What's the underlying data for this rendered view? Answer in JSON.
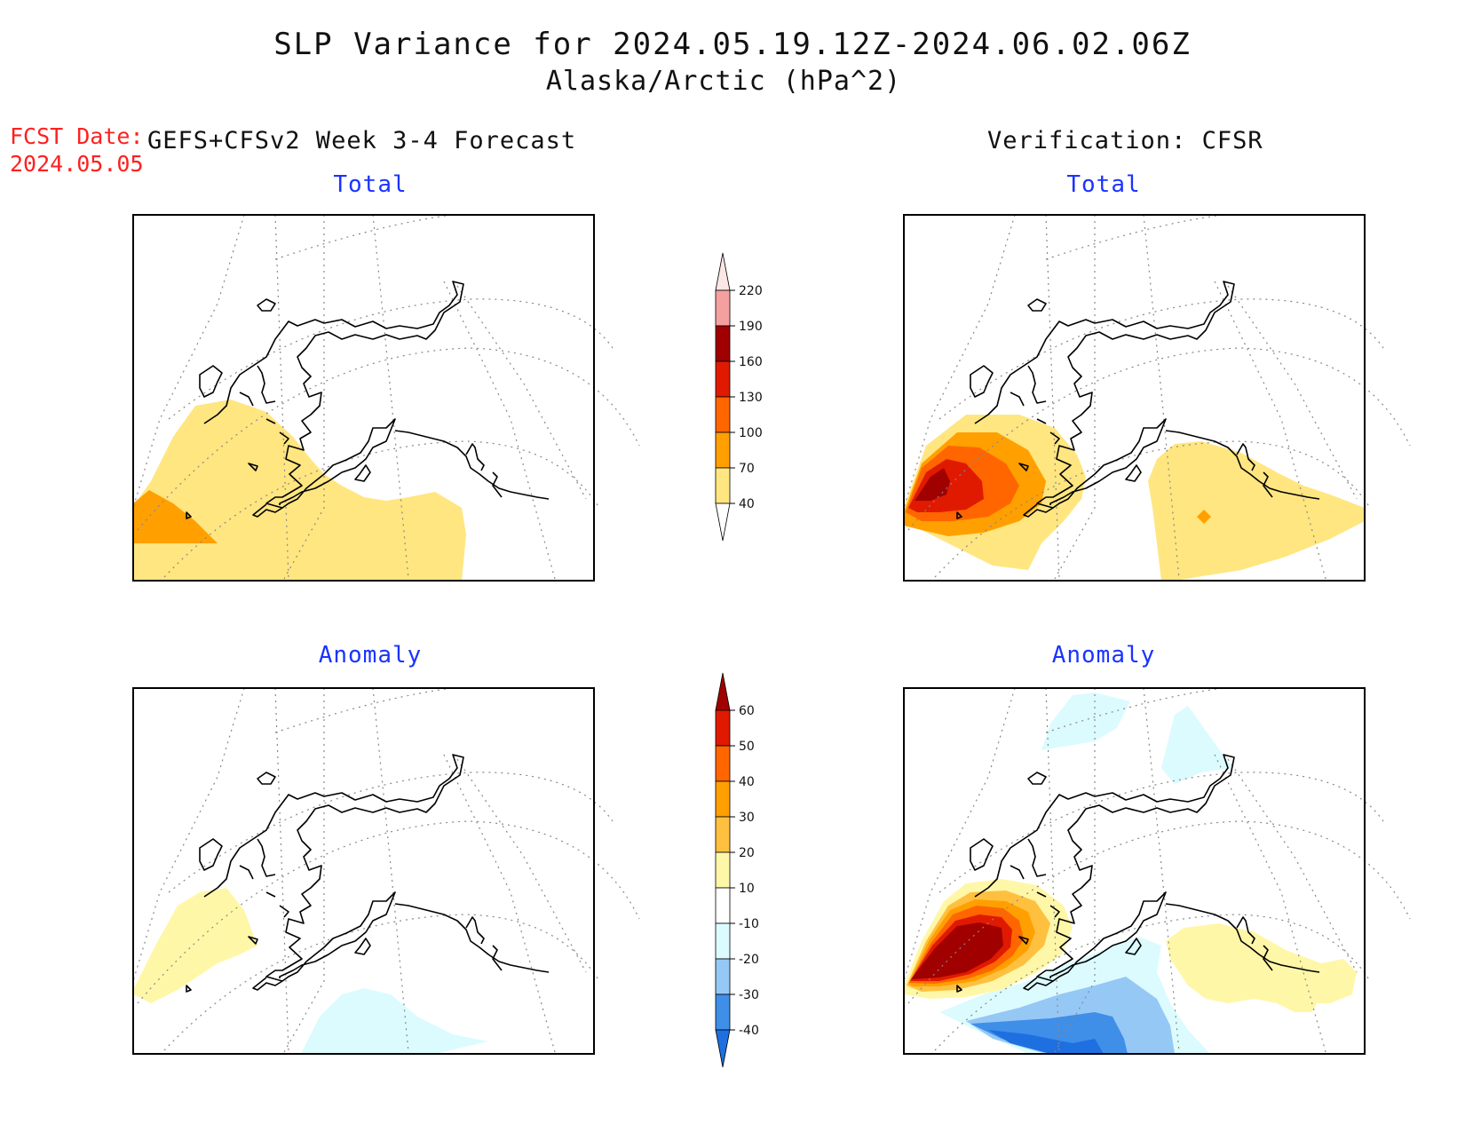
{
  "title": {
    "line1": "SLP Variance for 2024.05.19.12Z-2024.06.02.06Z",
    "line2": "Alaska/Arctic (hPa^2)"
  },
  "fcst": {
    "label": "FCST Date:",
    "date": "2024.05.05"
  },
  "left_column_title": "GEFS+CFSv2 Week 3-4 Forecast",
  "right_column_title": "Verification: CFSR",
  "panels": {
    "fcst_total": {
      "subtitle": "Total"
    },
    "verif_total": {
      "subtitle": "Total"
    },
    "fcst_anomaly": {
      "subtitle": "Anomaly"
    },
    "verif_anomaly": {
      "subtitle": "Anomaly"
    }
  },
  "colorbars": {
    "total": {
      "labels": [
        "40",
        "70",
        "100",
        "130",
        "160",
        "190",
        "220"
      ],
      "colors": [
        "#ffe680",
        "#ffa000",
        "#ff6600",
        "#e01a00",
        "#a00000",
        "#f4a0a0",
        "#fde6e6"
      ]
    },
    "anomaly": {
      "labels": [
        "-40",
        "-30",
        "-20",
        "-10",
        "10",
        "20",
        "30",
        "40",
        "50",
        "60"
      ],
      "colors": [
        "#1e6fe0",
        "#3f8ee8",
        "#96c8f5",
        "#dcfbff",
        "#ffffff",
        "#fff7a8",
        "#ffc040",
        "#ffa000",
        "#ff6600",
        "#e01a00",
        "#a00000"
      ]
    }
  },
  "colors": {
    "c40_70": "#ffe680",
    "c70_100": "#ffa000",
    "c100_130": "#ff6600",
    "c130_160": "#e01a00",
    "c160_190": "#a00000",
    "a_pos10": "#fff7a8",
    "a_pos20": "#ffc040",
    "a_pos30": "#ffa000",
    "a_pos40": "#ff6600",
    "a_pos50": "#e01a00",
    "a_pos60": "#a00000",
    "a_neg10": "#dcfbff",
    "a_neg20": "#96c8f5",
    "a_neg30": "#3f8ee8",
    "a_neg40": "#1e6fe0"
  }
}
